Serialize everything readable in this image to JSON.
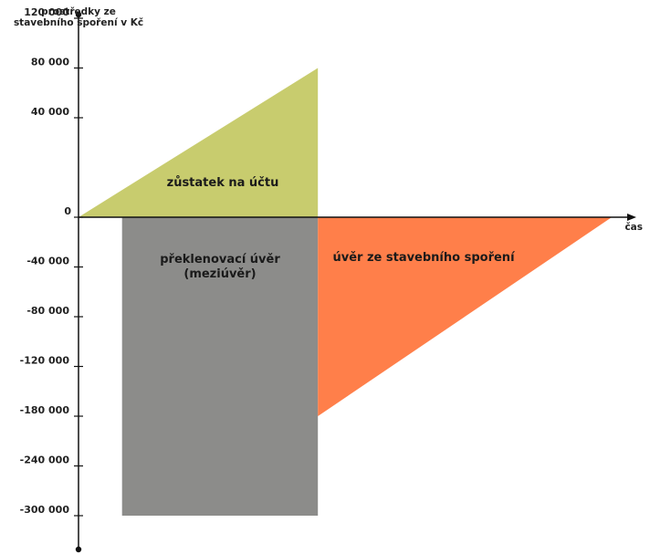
{
  "chart_data": {
    "type": "area",
    "y_axis_title": [
      "prostředky ze",
      "stavebního spoření v Kč"
    ],
    "x_axis_title": "čas",
    "y_ticks": [
      {
        "label": "120 000",
        "step": 4
      },
      {
        "label": "80 000",
        "step": 3
      },
      {
        "label": "40 000",
        "step": 2
      },
      {
        "label": "0",
        "step": 0
      },
      {
        "label": "-40 000",
        "step": -1
      },
      {
        "label": "-80 000",
        "step": -2
      },
      {
        "label": "-120 000",
        "step": -3
      },
      {
        "label": "-180 000",
        "step": -4
      },
      {
        "label": "-240 000",
        "step": -5
      },
      {
        "label": "-300 000",
        "step": -6
      }
    ],
    "regions": [
      {
        "name": "zůstatek na účtu",
        "color": "#c8cc6e",
        "shape": "triangle",
        "t": [
          0,
          0.44,
          0.44
        ],
        "value": [
          0,
          120000,
          0
        ],
        "label_lines": [
          "zůstatek na účtu"
        ]
      },
      {
        "name": "překlenovací úvěr (meziúvěr)",
        "color": "#8c8c8a",
        "shape": "rectangle",
        "t": [
          0.08,
          0.44,
          0.44,
          0.08
        ],
        "value": [
          0,
          0,
          -300000,
          -300000
        ],
        "label_lines": [
          "překlenovací úvěr",
          "(meziúvěr)"
        ]
      },
      {
        "name": "úvěr ze stavebního spoření",
        "color": "#ff7f4a",
        "shape": "triangle",
        "t": [
          0.44,
          0.98,
          0.44
        ],
        "value": [
          0,
          0,
          -180000
        ],
        "label_lines": [
          "úvěr ze stavebního spoření"
        ]
      }
    ]
  }
}
